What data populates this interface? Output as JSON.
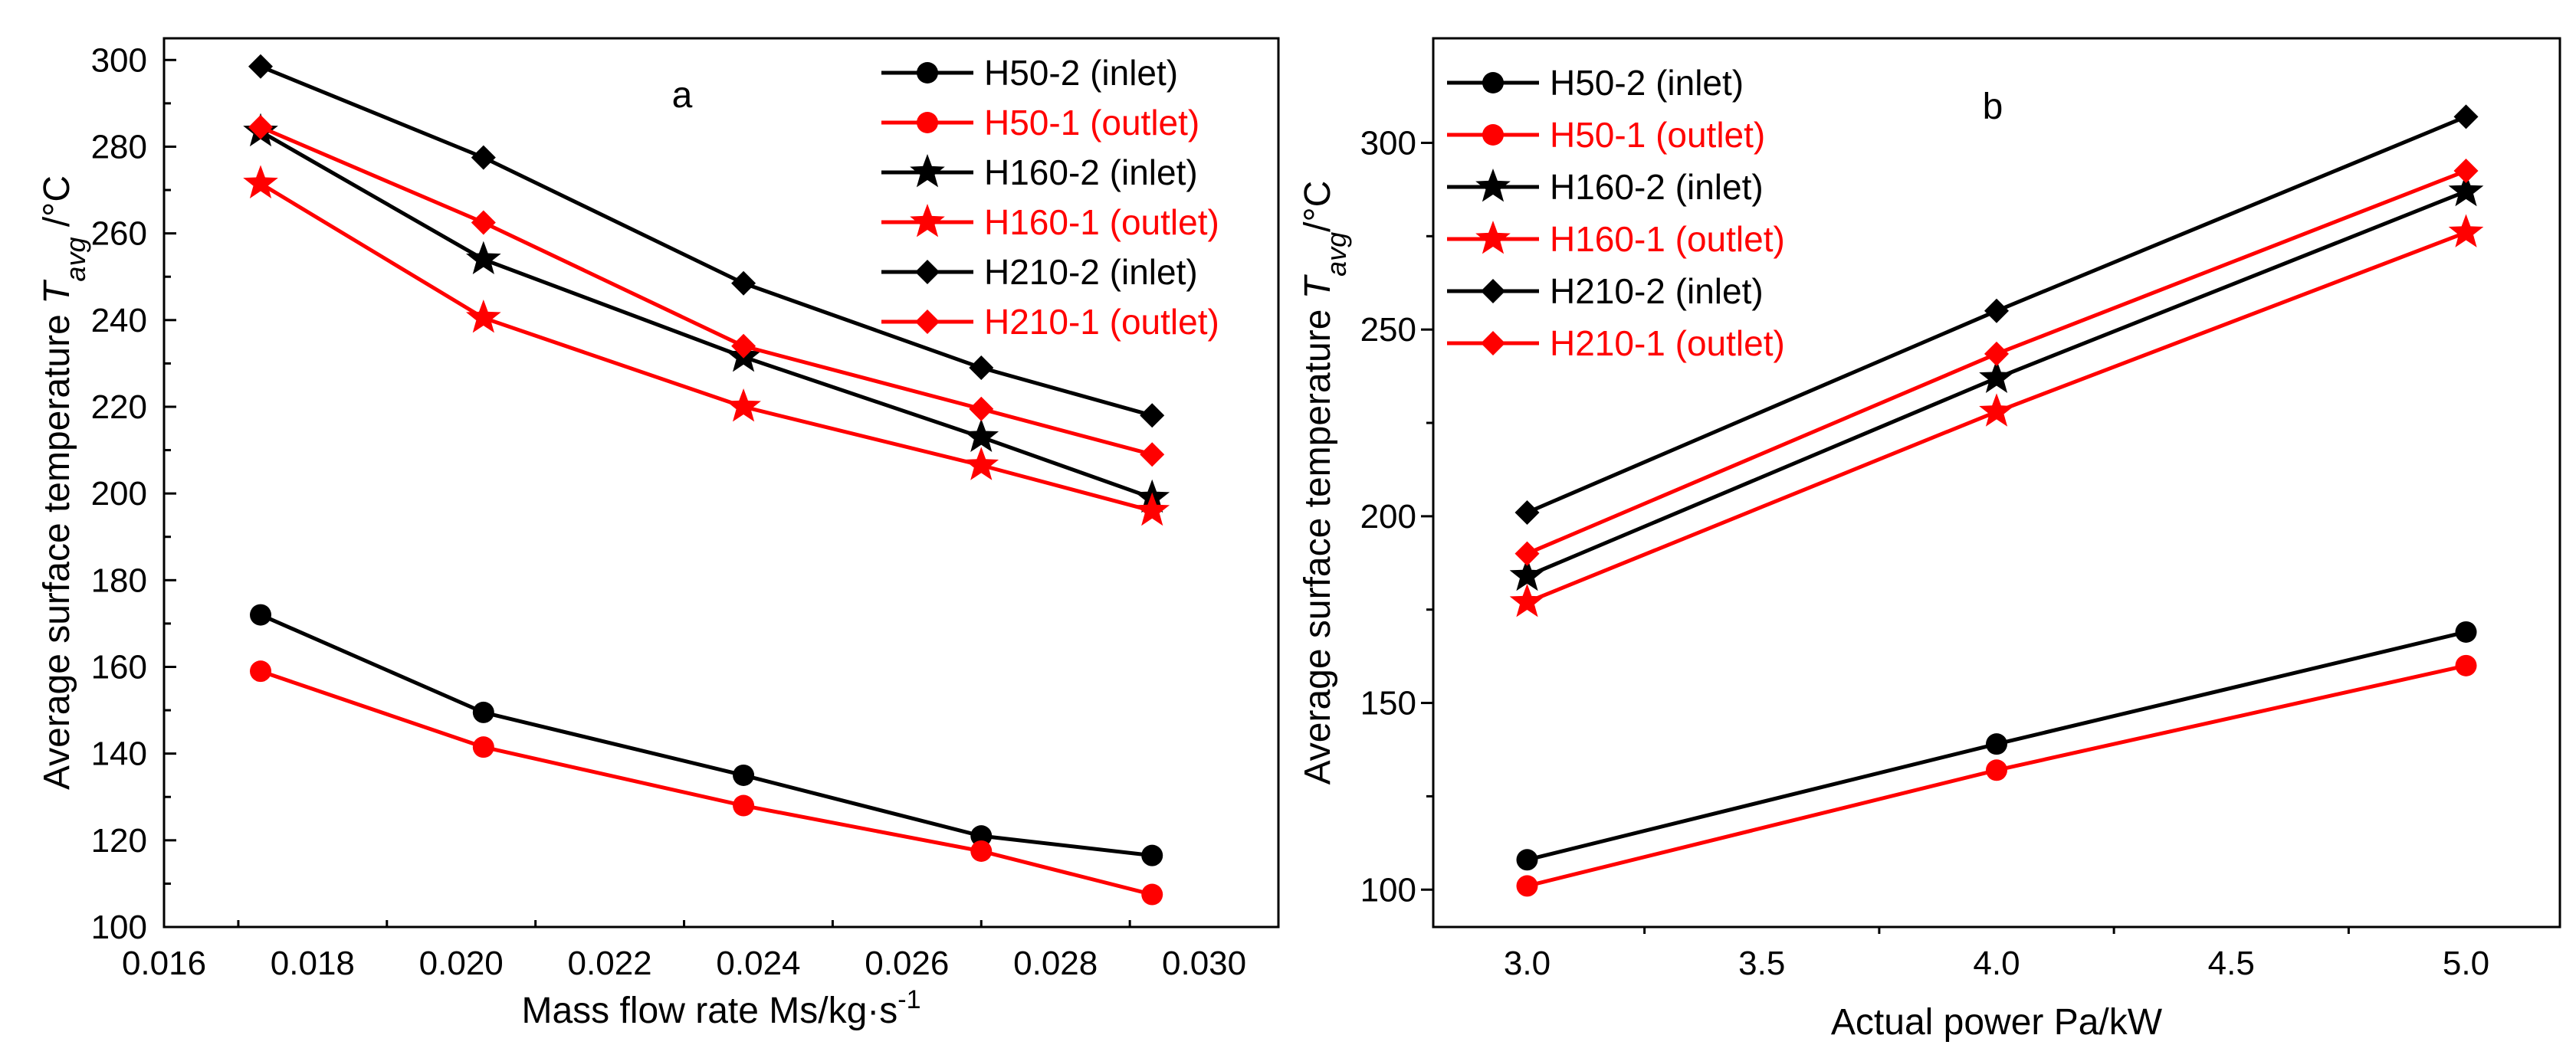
{
  "chart_data": [
    {
      "type": "line",
      "panel_label": "a",
      "xlabel": "Mass flow rate Ms/kg·s",
      "xlabel_sup": "-1",
      "ylabel": "Average surface temperature ",
      "ylabel_sym": "T",
      "ylabel_sub": "avg",
      "ylabel_unit": " /°C",
      "xlim": [
        0.016,
        0.031
      ],
      "ylim": [
        100,
        305
      ],
      "xticks": [
        0.016,
        0.018,
        0.02,
        0.022,
        0.024,
        0.026,
        0.028,
        0.03
      ],
      "xtick_labels": [
        "0.016",
        "0.018",
        "0.020",
        "0.022",
        "0.024",
        "0.026",
        "0.028",
        "0.030"
      ],
      "yticks": [
        100,
        120,
        140,
        160,
        180,
        200,
        220,
        240,
        260,
        280,
        300
      ],
      "ytick_labels": [
        "100",
        "120",
        "140",
        "160",
        "180",
        "200",
        "220",
        "240",
        "260",
        "280",
        "300"
      ],
      "x": [
        0.0173,
        0.0203,
        0.0238,
        0.027,
        0.0293
      ],
      "legend_position": "top-right",
      "series": [
        {
          "name": "H50-2 (inlet)",
          "color": "#000000",
          "marker": "circle",
          "values": [
            172,
            149.5,
            135,
            121,
            116.5
          ]
        },
        {
          "name": "H50-1 (outlet)",
          "color": "#ff0000",
          "marker": "circle",
          "values": [
            159,
            141.5,
            128,
            117.5,
            107.5
          ]
        },
        {
          "name": "H160-2 (inlet)",
          "color": "#000000",
          "marker": "star",
          "values": [
            283.5,
            254,
            231.5,
            213,
            199
          ]
        },
        {
          "name": "H160-1 (outlet)",
          "color": "#ff0000",
          "marker": "star",
          "values": [
            271.5,
            240.5,
            220,
            206.5,
            196
          ]
        },
        {
          "name": "H210-2 (inlet)",
          "color": "#000000",
          "marker": "diamond",
          "values": [
            298.5,
            277.5,
            248.5,
            229,
            218
          ]
        },
        {
          "name": "H210-1 (outlet)",
          "color": "#ff0000",
          "marker": "diamond",
          "values": [
            284.5,
            262.5,
            234,
            219.5,
            209
          ]
        }
      ]
    },
    {
      "type": "line",
      "panel_label": "b",
      "xlabel": "Actual power Pa/kW",
      "ylabel": "Average surface temperature ",
      "ylabel_sym": "T",
      "ylabel_sub": "avg",
      "ylabel_unit": "/°C",
      "xlim": [
        2.8,
        5.2
      ],
      "ylim": [
        90,
        328
      ],
      "xticks": [
        3.0,
        3.5,
        4.0,
        4.5,
        5.0
      ],
      "xtick_labels": [
        "3.0",
        "3.5",
        "4.0",
        "4.5",
        "5.0"
      ],
      "yticks": [
        100,
        150,
        200,
        250,
        300
      ],
      "ytick_labels": [
        "100",
        "150",
        "200",
        "250",
        "300"
      ],
      "x": [
        3.0,
        4.0,
        5.0
      ],
      "legend_position": "top-left",
      "series": [
        {
          "name": "H50-2 (inlet)",
          "color": "#000000",
          "marker": "circle",
          "values": [
            108,
            139,
            169
          ]
        },
        {
          "name": "H50-1 (outlet)",
          "color": "#ff0000",
          "marker": "circle",
          "values": [
            101,
            132,
            160
          ]
        },
        {
          "name": "H160-2 (inlet)",
          "color": "#000000",
          "marker": "star",
          "values": [
            184,
            237,
            287
          ]
        },
        {
          "name": "H160-1 (outlet)",
          "color": "#ff0000",
          "marker": "star",
          "values": [
            177,
            228,
            276
          ]
        },
        {
          "name": "H210-2 (inlet)",
          "color": "#000000",
          "marker": "diamond",
          "values": [
            201,
            255,
            307
          ]
        },
        {
          "name": "H210-1 (outlet)",
          "color": "#ff0000",
          "marker": "diamond",
          "values": [
            190,
            243.5,
            292.5
          ]
        }
      ]
    }
  ]
}
